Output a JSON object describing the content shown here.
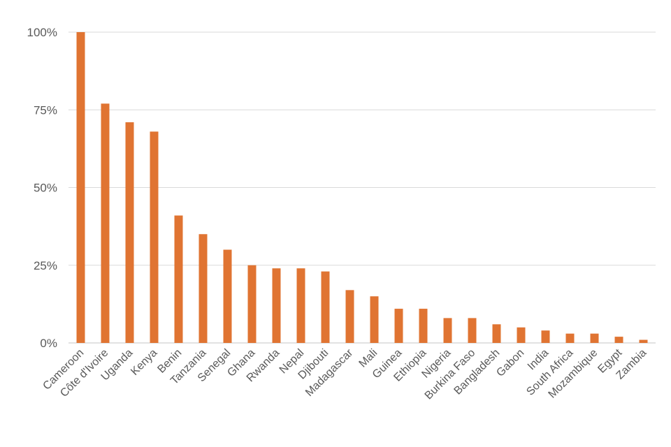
{
  "chart_data": {
    "type": "bar",
    "categories": [
      "Cameroon",
      "Côte d'Ivoire",
      "Uganda",
      "Kenya",
      "Benin",
      "Tanzania",
      "Senegal",
      "Ghana",
      "Rwanda",
      "Nepal",
      "Djibouti",
      "Madagascar",
      "Mali",
      "Guinea",
      "Ethiopia",
      "Nigeria",
      "Burkina Faso",
      "Bangladesh",
      "Gabon",
      "India",
      "South Africa",
      "Mozambique",
      "Egypt",
      "Zambia"
    ],
    "values": [
      100,
      77,
      71,
      68,
      41,
      35,
      30,
      25,
      24,
      24,
      23,
      17,
      15,
      11,
      11,
      8,
      8,
      6,
      5,
      4,
      3,
      3,
      2,
      1
    ],
    "title": "",
    "xlabel": "",
    "ylabel": "",
    "ylim": [
      0,
      100
    ],
    "yticks": [
      0,
      25,
      50,
      75,
      100
    ],
    "ytick_labels": [
      "0%",
      "25%",
      "50%",
      "75%",
      "100%"
    ],
    "grid": true,
    "legend": "none",
    "bar_color": "#E07432"
  }
}
